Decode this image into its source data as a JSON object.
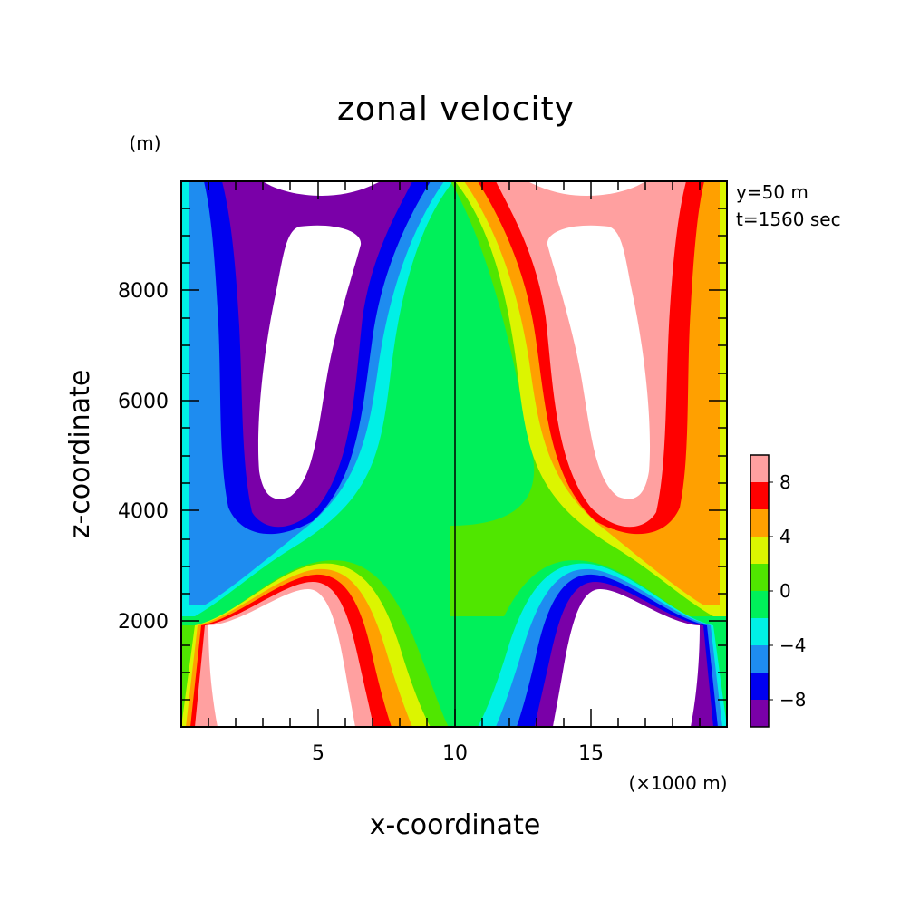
{
  "chart_data": {
    "type": "heatmap",
    "title": "zonal velocity",
    "xlabel": "x-coordinate",
    "ylabel": "z-coordinate",
    "x_unit": "(×1000 m)",
    "y_unit": "(m)",
    "xlim": [
      0,
      20
    ],
    "ylim": [
      0,
      10000
    ],
    "x_ticks": [
      "5",
      "10",
      "15"
    ],
    "y_ticks": [
      "2000",
      "4000",
      "6000",
      "8000"
    ],
    "annotations": [
      "y=50 m",
      "t=1560 sec"
    ],
    "colorbar": {
      "levels": [
        -10,
        -8,
        -6,
        -4,
        -2,
        0,
        2,
        4,
        6,
        8,
        10
      ],
      "tick_labels": [
        "-8",
        "-4",
        "0",
        "4",
        "8"
      ],
      "colors": [
        "#7a00a8",
        "#0000f0",
        "#1e8cf0",
        "#00f0e6",
        "#00f05a",
        "#50e600",
        "#dcf500",
        "#ffa000",
        "#ff0000",
        "#ffa0a0"
      ],
      "out_of_range_color": "#ffffff"
    },
    "colormap_note_values_regions": [
      {
        "region": "left upper vortex core",
        "value": "< -10"
      },
      {
        "region": "right upper vortex core",
        "value": "> 10"
      },
      {
        "region": "left lower near-surface",
        "value": "> 10"
      },
      {
        "region": "right lower near-surface",
        "value": "< -10"
      },
      {
        "region": "center column",
        "value": "0 to 2"
      }
    ]
  }
}
